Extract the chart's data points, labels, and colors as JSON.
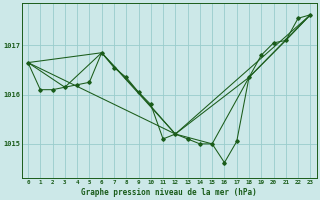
{
  "background_color": "#cce8e8",
  "plot_bg_color": "#cce8e8",
  "grid_color": "#99cccc",
  "line_color": "#1a5c1a",
  "title": "Graphe pression niveau de la mer (hPa)",
  "ylim": [
    1014.3,
    1017.85
  ],
  "xlim": [
    -0.5,
    23.5
  ],
  "yticks": [
    1015,
    1016,
    1017
  ],
  "xticks": [
    0,
    1,
    2,
    3,
    4,
    5,
    6,
    7,
    8,
    9,
    10,
    11,
    12,
    13,
    14,
    15,
    16,
    17,
    18,
    19,
    20,
    21,
    22,
    23
  ],
  "xtick_labels": [
    "0",
    "1",
    "2",
    "3",
    "4",
    "5",
    "6",
    "7",
    "8",
    "9",
    "10",
    "11",
    "12",
    "13",
    "14",
    "15",
    "16",
    "17",
    "18",
    "19",
    "20",
    "21",
    "22",
    "23"
  ],
  "main_series": {
    "x": [
      0,
      1,
      2,
      3,
      4,
      5,
      6,
      7,
      8,
      9,
      10,
      11,
      12,
      13,
      14,
      15,
      16,
      17,
      18,
      19,
      20,
      21,
      22,
      23
    ],
    "y": [
      1016.65,
      1016.1,
      1016.1,
      1016.15,
      1016.2,
      1016.25,
      1016.85,
      1016.55,
      1016.35,
      1016.05,
      1015.8,
      1015.1,
      1015.2,
      1015.1,
      1015.0,
      1015.0,
      1014.62,
      1015.05,
      1016.35,
      1016.8,
      1017.05,
      1017.1,
      1017.55,
      1017.62
    ]
  },
  "overlay_series": [
    {
      "x": [
        0,
        3,
        6,
        9,
        12,
        15,
        18,
        21,
        23
      ],
      "y": [
        1016.65,
        1016.15,
        1016.85,
        1016.05,
        1015.2,
        1015.0,
        1016.35,
        1017.1,
        1017.62
      ]
    },
    {
      "x": [
        0,
        6,
        12,
        18,
        23
      ],
      "y": [
        1016.65,
        1016.85,
        1015.2,
        1016.35,
        1017.62
      ]
    },
    {
      "x": [
        0,
        12,
        23
      ],
      "y": [
        1016.65,
        1015.2,
        1017.62
      ]
    }
  ]
}
